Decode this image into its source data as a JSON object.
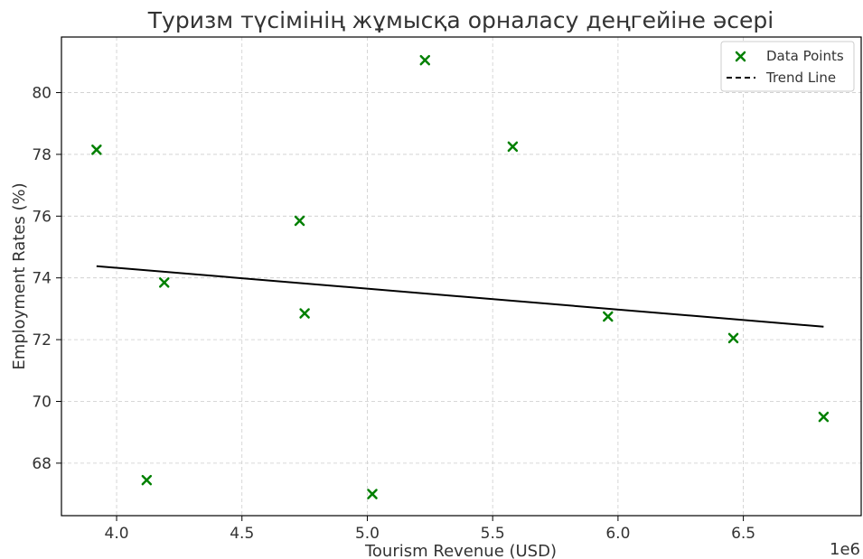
{
  "chart_data": {
    "type": "scatter",
    "title": "Туризм түсімінің жұмысқа орналасу деңгейіне әсері",
    "xlabel": "Tourism Revenue (USD)",
    "ylabel": "Employment Rates (%)",
    "x_offset_label": "1e6",
    "xlim": [
      3.78,
      6.97
    ],
    "ylim": [
      66.3,
      81.8
    ],
    "x_ticks": [
      4.0,
      4.5,
      5.0,
      5.5,
      6.0,
      6.5
    ],
    "x_tick_labels": [
      "4.0",
      "4.5",
      "5.0",
      "5.5",
      "6.0",
      "6.5"
    ],
    "y_ticks": [
      68,
      70,
      72,
      74,
      76,
      78,
      80
    ],
    "y_tick_labels": [
      "68",
      "70",
      "72",
      "74",
      "76",
      "78",
      "80"
    ],
    "grid": true,
    "legend_position": "top-right",
    "series": [
      {
        "name": "Data Points",
        "kind": "scatter",
        "marker": "x",
        "color": "#008000",
        "points": [
          {
            "x": 3.92,
            "y": 78.15
          },
          {
            "x": 4.12,
            "y": 67.45
          },
          {
            "x": 4.19,
            "y": 73.85
          },
          {
            "x": 4.73,
            "y": 75.85
          },
          {
            "x": 4.75,
            "y": 72.85
          },
          {
            "x": 5.02,
            "y": 67.0
          },
          {
            "x": 5.23,
            "y": 81.05
          },
          {
            "x": 5.58,
            "y": 78.25
          },
          {
            "x": 5.96,
            "y": 72.75
          },
          {
            "x": 6.46,
            "y": 72.05
          },
          {
            "x": 6.82,
            "y": 69.5
          }
        ]
      },
      {
        "name": "Trend Line",
        "kind": "line",
        "color": "#000000",
        "points": [
          {
            "x": 3.92,
            "y": 74.38
          },
          {
            "x": 6.82,
            "y": 72.42
          }
        ]
      }
    ]
  }
}
